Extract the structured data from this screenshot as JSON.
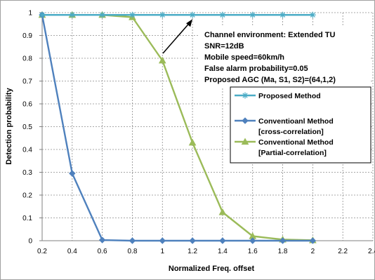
{
  "chart_data": {
    "type": "line",
    "title": "",
    "xlabel": "Normalized Freq. offset",
    "ylabel": "Detection probability",
    "xlim": [
      0.2,
      2.4
    ],
    "ylim": [
      0,
      1
    ],
    "x_ticks": [
      "0.2",
      "0.4",
      "0.6",
      "0.8",
      "1",
      "1.2",
      "1.4",
      "1.6",
      "1.8",
      "2",
      "2.2",
      "2.4"
    ],
    "y_ticks": [
      "0",
      "0.1",
      "0.2",
      "0.3",
      "0.4",
      "0.5",
      "0.6",
      "0.7",
      "0.8",
      "0.9",
      "1"
    ],
    "grid": true,
    "legend_position": "right",
    "x": [
      0.2,
      0.4,
      0.6,
      0.8,
      1.0,
      1.2,
      1.4,
      1.6,
      1.8,
      2.0
    ],
    "series": [
      {
        "name_lines": [
          "Proposed Method"
        ],
        "marker": "asterisk",
        "color": "#4bacc6",
        "values": [
          0.99,
          0.99,
          0.99,
          0.99,
          0.99,
          0.99,
          0.99,
          0.99,
          0.99,
          0.99
        ]
      },
      {
        "name_lines": [
          "Conventioanl Method",
          "[cross-correlation]"
        ],
        "marker": "diamond",
        "color": "#4f81bd",
        "values": [
          0.99,
          0.295,
          0.003,
          0.0,
          0.0,
          0.0,
          0.0,
          0.0,
          0.0,
          0.0
        ]
      },
      {
        "name_lines": [
          "Conventional Method",
          "[Partial-correlation]"
        ],
        "marker": "triangle",
        "color": "#9bbb59",
        "values": [
          0.99,
          0.99,
          0.99,
          0.98,
          0.79,
          0.43,
          0.125,
          0.02,
          0.005,
          0.002
        ]
      }
    ],
    "annotation": {
      "lines": [
        "Channel environment: Extended TU",
        "SNR=12dB",
        "Mobile speed=60km/h",
        "False alarm probability=0.05",
        "Proposed AGC (Ma, S1, S2)=(64,1,2)"
      ],
      "arrow_target": {
        "x": 1.2,
        "y": 0.99
      }
    }
  }
}
